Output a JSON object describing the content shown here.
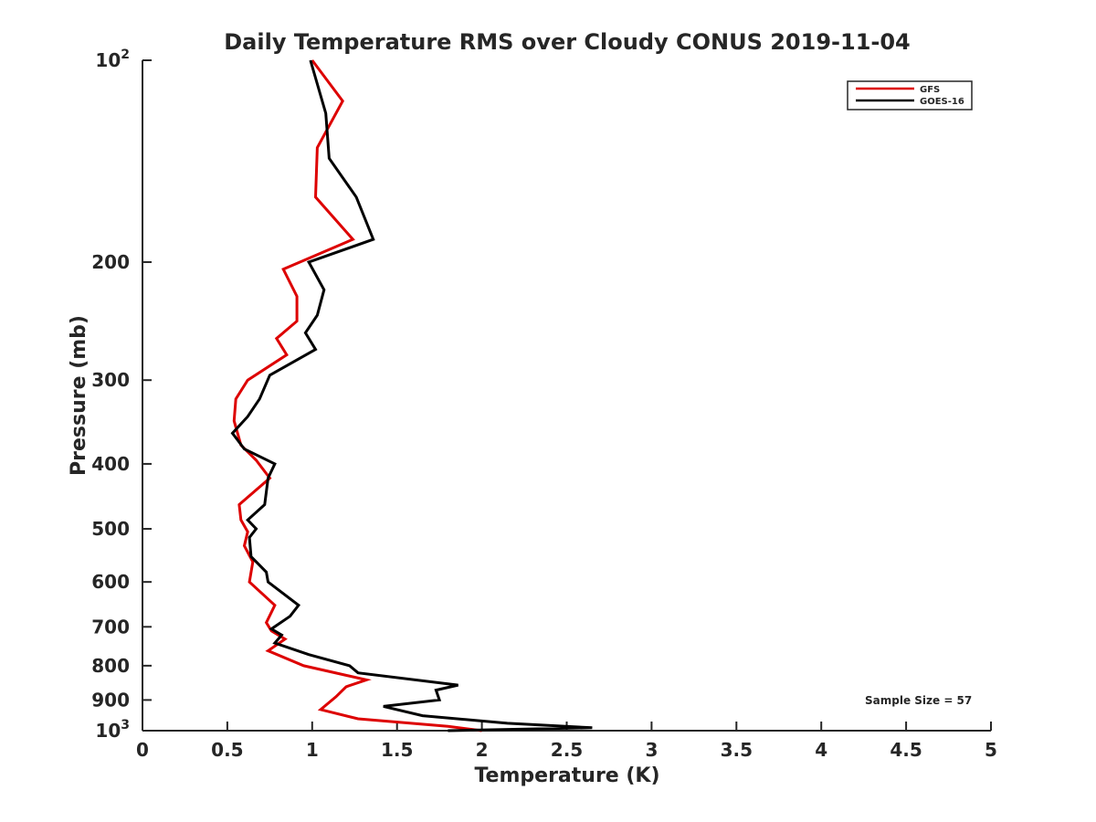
{
  "chart_data": {
    "type": "line",
    "title": "Daily Temperature RMS over Cloudy CONUS 2019-11-04",
    "xlabel": "Temperature (K)",
    "ylabel": "Pressure (mb)",
    "xlim": [
      0,
      5
    ],
    "ylim": [
      100,
      1000
    ],
    "y_scale": "log",
    "y_reversed": true,
    "grid": false,
    "legend_position": "top-right",
    "x_ticks": [
      "0",
      "0.5",
      "1",
      "1.5",
      "2",
      "2.5",
      "3",
      "3.5",
      "4",
      "4.5",
      "5"
    ],
    "y_ticks": [
      {
        "value": 100,
        "base": "10",
        "exp": "2",
        "label": ""
      },
      {
        "value": 200,
        "label": "200"
      },
      {
        "value": 300,
        "label": "300"
      },
      {
        "value": 400,
        "label": "400"
      },
      {
        "value": 500,
        "label": "500"
      },
      {
        "value": 600,
        "label": "600"
      },
      {
        "value": 700,
        "label": "700"
      },
      {
        "value": 800,
        "label": "800"
      },
      {
        "value": 900,
        "label": "900"
      },
      {
        "value": 1000,
        "base": "10",
        "exp": "3",
        "label": ""
      }
    ],
    "annotation": "Sample Size = 57",
    "series": [
      {
        "name": "GFS",
        "color": "#dd0000",
        "points": [
          [
            1.0,
            100
          ],
          [
            1.18,
            115
          ],
          [
            1.03,
            135
          ],
          [
            1.02,
            160
          ],
          [
            1.24,
            185
          ],
          [
            0.83,
            205
          ],
          [
            0.91,
            225
          ],
          [
            0.91,
            245
          ],
          [
            0.79,
            260
          ],
          [
            0.85,
            275
          ],
          [
            0.62,
            300
          ],
          [
            0.55,
            320
          ],
          [
            0.54,
            345
          ],
          [
            0.58,
            375
          ],
          [
            0.67,
            395
          ],
          [
            0.75,
            420
          ],
          [
            0.57,
            460
          ],
          [
            0.58,
            485
          ],
          [
            0.62,
            505
          ],
          [
            0.6,
            530
          ],
          [
            0.65,
            560
          ],
          [
            0.63,
            600
          ],
          [
            0.78,
            650
          ],
          [
            0.73,
            690
          ],
          [
            0.76,
            710
          ],
          [
            0.84,
            730
          ],
          [
            0.74,
            760
          ],
          [
            0.95,
            800
          ],
          [
            1.32,
            840
          ],
          [
            1.2,
            860
          ],
          [
            1.14,
            890
          ],
          [
            1.05,
            930
          ],
          [
            1.27,
            960
          ],
          [
            1.8,
            985
          ],
          [
            2.0,
            1000
          ]
        ]
      },
      {
        "name": "GOES-16",
        "color": "#000000",
        "points": [
          [
            0.99,
            100
          ],
          [
            1.08,
            120
          ],
          [
            1.1,
            140
          ],
          [
            1.26,
            160
          ],
          [
            1.36,
            185
          ],
          [
            0.98,
            200
          ],
          [
            1.07,
            220
          ],
          [
            1.03,
            240
          ],
          [
            0.96,
            255
          ],
          [
            1.02,
            270
          ],
          [
            0.75,
            295
          ],
          [
            0.69,
            320
          ],
          [
            0.62,
            340
          ],
          [
            0.53,
            360
          ],
          [
            0.6,
            380
          ],
          [
            0.78,
            400
          ],
          [
            0.74,
            420
          ],
          [
            0.72,
            460
          ],
          [
            0.62,
            485
          ],
          [
            0.67,
            500
          ],
          [
            0.63,
            515
          ],
          [
            0.64,
            550
          ],
          [
            0.73,
            580
          ],
          [
            0.74,
            600
          ],
          [
            0.92,
            650
          ],
          [
            0.87,
            675
          ],
          [
            0.76,
            705
          ],
          [
            0.82,
            720
          ],
          [
            0.78,
            740
          ],
          [
            0.98,
            770
          ],
          [
            1.22,
            800
          ],
          [
            1.27,
            820
          ],
          [
            1.86,
            855
          ],
          [
            1.73,
            870
          ],
          [
            1.75,
            900
          ],
          [
            1.42,
            920
          ],
          [
            1.65,
            950
          ],
          [
            2.15,
            975
          ],
          [
            2.65,
            990
          ],
          [
            1.8,
            1000
          ]
        ]
      }
    ]
  }
}
